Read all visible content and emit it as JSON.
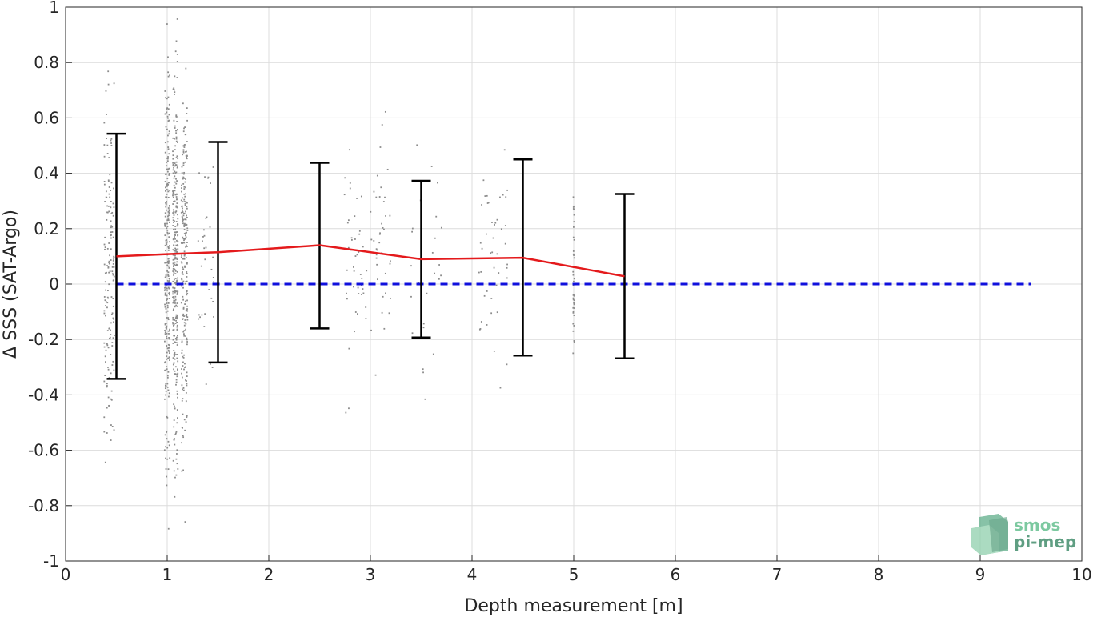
{
  "chart_data": {
    "type": "scatter",
    "title": "",
    "xlabel": "Depth measurement [m]",
    "ylabel": "Δ SSS (SAT-Argo)",
    "xlim": [
      0,
      10
    ],
    "ylim": [
      -1,
      1
    ],
    "grid": true,
    "x_ticks": [
      "0",
      "1",
      "2",
      "3",
      "4",
      "5",
      "6",
      "7",
      "8",
      "9",
      "10"
    ],
    "y_ticks": [
      "1",
      "0.8",
      "0.6",
      "0.4",
      "0.2",
      "0",
      "-0.2",
      "-0.4",
      "-0.6",
      "-0.8",
      "-1"
    ],
    "mean_line": {
      "color": "#e41a1c",
      "x": [
        0.5,
        1.0,
        1.5,
        2.5,
        3.5,
        4.5,
        5.5
      ],
      "y": [
        0.1,
        0.108,
        0.115,
        0.14,
        0.09,
        0.095,
        0.028
      ]
    },
    "error_bars": {
      "color": "#000000",
      "x": [
        0.5,
        1.5,
        2.5,
        3.5,
        4.5,
        5.5
      ],
      "upper": [
        0.543,
        0.513,
        0.438,
        0.373,
        0.45,
        0.325
      ],
      "lower": [
        -0.342,
        -0.283,
        -0.16,
        -0.193,
        -0.258,
        -0.268
      ]
    },
    "zero_line": {
      "color": "#1010dd",
      "x": [
        0.5,
        9.5
      ],
      "y": [
        0,
        0
      ]
    },
    "scatter": {
      "color": "#8c8c8c",
      "clusters": [
        {
          "x": 0.43,
          "spread": 0.05,
          "count": 160,
          "center": 0.02,
          "sd": 0.32
        },
        {
          "x": 1.0,
          "spread": 0.025,
          "count": 260,
          "center": 0.05,
          "sd": 0.38
        },
        {
          "x": 1.08,
          "spread": 0.025,
          "count": 320,
          "center": 0.08,
          "sd": 0.33
        },
        {
          "x": 1.17,
          "spread": 0.03,
          "count": 240,
          "center": 0.1,
          "sd": 0.3
        },
        {
          "x": 1.38,
          "spread": 0.08,
          "count": 35,
          "center": 0.1,
          "sd": 0.22
        },
        {
          "x": 2.85,
          "spread": 0.12,
          "count": 45,
          "center": 0.08,
          "sd": 0.2
        },
        {
          "x": 3.1,
          "spread": 0.1,
          "count": 40,
          "center": 0.1,
          "sd": 0.22
        },
        {
          "x": 3.55,
          "spread": 0.15,
          "count": 25,
          "center": 0.05,
          "sd": 0.18
        },
        {
          "x": 4.2,
          "spread": 0.15,
          "count": 45,
          "center": 0.08,
          "sd": 0.2
        },
        {
          "x": 5.0,
          "spread": 0.006,
          "count": 40,
          "center": 0.05,
          "sd": 0.18
        }
      ]
    }
  },
  "logo": {
    "line1": "smos",
    "line2": "pi-mep"
  }
}
